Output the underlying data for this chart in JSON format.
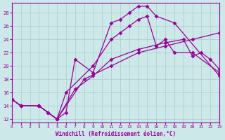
{
  "background_color": "#cce8e8",
  "grid_color": "#aacccc",
  "line_color": "#990099",
  "xlim": [
    0,
    23
  ],
  "ylim": [
    11.5,
    29.5
  ],
  "yticks": [
    12,
    14,
    16,
    18,
    20,
    22,
    24,
    26,
    28
  ],
  "xticks": [
    0,
    1,
    2,
    3,
    4,
    5,
    6,
    7,
    8,
    9,
    10,
    11,
    12,
    13,
    14,
    15,
    16,
    17,
    18,
    19,
    20,
    21,
    22,
    23
  ],
  "xlabel": "Windchill (Refroidissement éolien,°C)",
  "lines": [
    {
      "x": [
        0,
        1,
        3,
        4,
        5,
        6,
        9,
        11,
        12,
        13,
        14,
        15,
        16,
        17,
        18,
        20,
        23
      ],
      "y": [
        15,
        14,
        14,
        13,
        12,
        16,
        20,
        24,
        25,
        26,
        27,
        27.5,
        23,
        24,
        22,
        22,
        19
      ]
    },
    {
      "x": [
        0,
        1,
        3,
        4,
        5,
        6,
        7,
        9,
        11,
        12,
        13,
        14,
        15,
        16,
        18,
        23
      ],
      "y": [
        15,
        14,
        14,
        13,
        12,
        13,
        21,
        19,
        26.5,
        27,
        28,
        29,
        29,
        27.5,
        26.5,
        18.5
      ]
    },
    {
      "x": [
        0,
        1,
        3,
        5,
        7,
        9,
        11,
        14,
        17,
        19,
        20,
        21,
        22,
        23
      ],
      "y": [
        15,
        14,
        14,
        12,
        16.5,
        18.5,
        21,
        22.5,
        23.5,
        24,
        21.5,
        22,
        21,
        19.5
      ]
    },
    {
      "x": [
        0,
        1,
        3,
        5,
        8,
        11,
        14,
        17,
        20,
        23
      ],
      "y": [
        15,
        14,
        14,
        12,
        18,
        20,
        22,
        23,
        24,
        25
      ]
    }
  ]
}
